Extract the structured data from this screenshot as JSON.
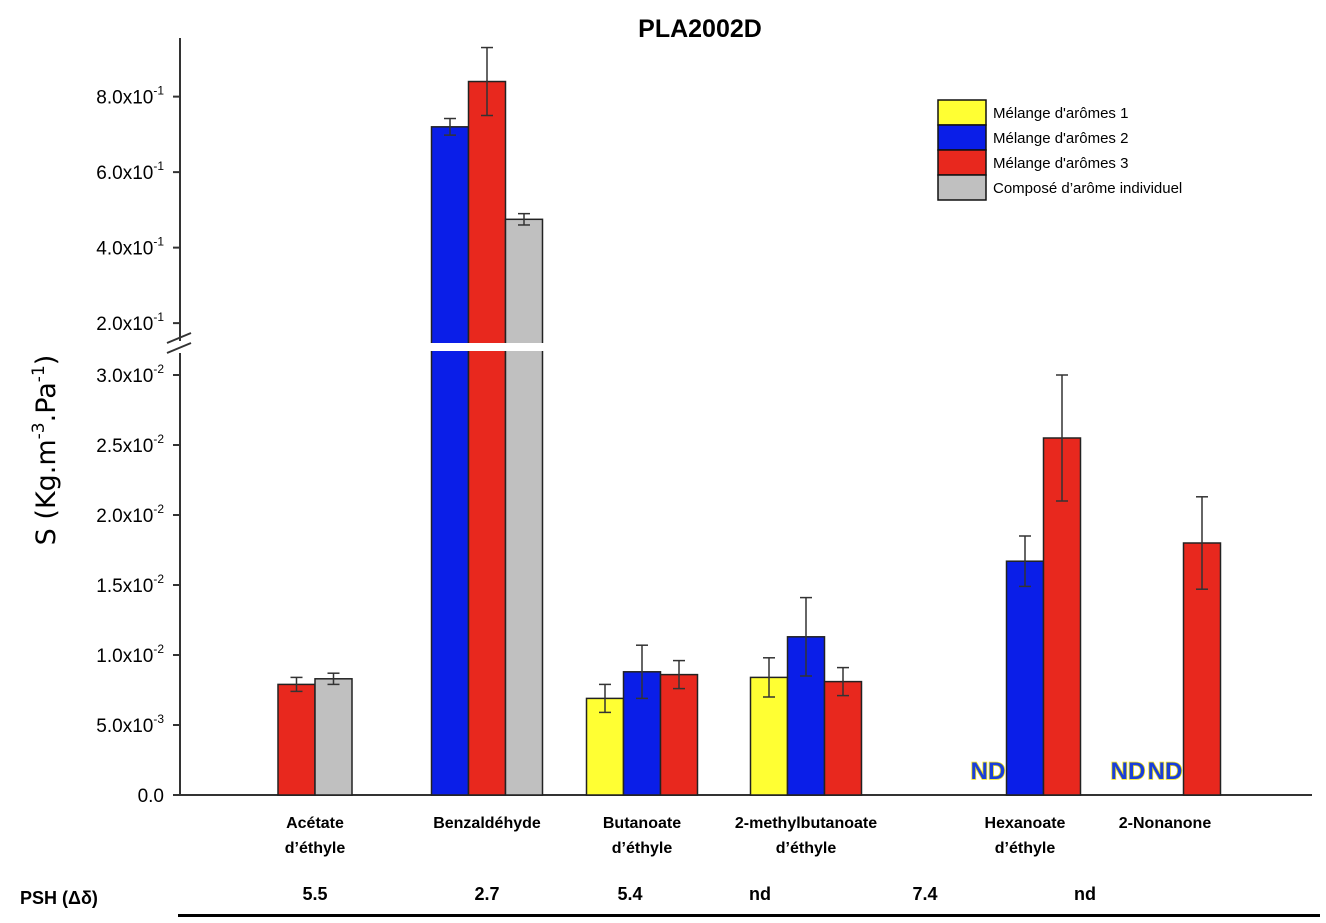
{
  "chart_data": {
    "type": "bar",
    "title": "PLA2002D",
    "ylabel_main": "S (Kg.m",
    "ylabel_sup1": "-3",
    "ylabel_mid": ".Pa",
    "ylabel_sup2": "-1",
    "ylabel_end": ")",
    "categories": [
      {
        "line1": "Acétate",
        "line2": "d’éthyle"
      },
      {
        "line1": "Benzaldéhyde",
        "line2": ""
      },
      {
        "line1": "Butanoate",
        "line2": "d’éthyle"
      },
      {
        "line1": "2-methylbutanoate",
        "line2": "d’éthyle"
      },
      {
        "line1": "Hexanoate",
        "line2": "d’éthyle"
      },
      {
        "line1": "2-Nonanone",
        "line2": ""
      }
    ],
    "series": [
      {
        "name": "Mélange d'arômes 1",
        "color": "#ffff33",
        "values": [
          null,
          null,
          0.0069,
          0.0084,
          null,
          null
        ],
        "errors": [
          null,
          null,
          0.001,
          0.0014,
          null,
          null
        ]
      },
      {
        "name": "Mélange d'arômes 2",
        "color": "#0a1ee8",
        "values": [
          null,
          0.72,
          0.0088,
          0.0113,
          0.0167,
          null
        ],
        "errors": [
          null,
          0.022,
          0.0019,
          0.0028,
          0.0018,
          null
        ]
      },
      {
        "name": "Mélange d'arômes 3",
        "color": "#e8281e",
        "values": [
          0.0079,
          0.84,
          0.0086,
          0.0081,
          0.0255,
          0.018
        ],
        "errors": [
          0.0005,
          0.09,
          0.001,
          0.001,
          0.0045,
          0.0033
        ]
      },
      {
        "name": "Composé d’arôme individuel",
        "color": "#c0c0c0",
        "values": [
          0.0083,
          0.475,
          null,
          null,
          null,
          null
        ],
        "errors": [
          0.0004,
          0.015,
          null,
          null,
          null,
          null
        ]
      }
    ],
    "nd_marks": [
      {
        "category": 4,
        "series": 0,
        "text": "ND"
      },
      {
        "category": 5,
        "series": 0,
        "text": "ND"
      },
      {
        "category": 5,
        "series": 1,
        "text": "ND"
      }
    ],
    "axis_lower": {
      "ylim": [
        0,
        0.03
      ],
      "ticks": [
        {
          "value": 0.0,
          "mant": "0.0",
          "exp": ""
        },
        {
          "value": 0.005,
          "mant": "5.0x10",
          "exp": "-3"
        },
        {
          "value": 0.01,
          "mant": "1.0x10",
          "exp": "-2"
        },
        {
          "value": 0.015,
          "mant": "1.5x10",
          "exp": "-2"
        },
        {
          "value": 0.02,
          "mant": "2.0x10",
          "exp": "-2"
        },
        {
          "value": 0.025,
          "mant": "2.5x10",
          "exp": "-2"
        },
        {
          "value": 0.03,
          "mant": "3.0x10",
          "exp": "-2"
        }
      ]
    },
    "axis_upper": {
      "ylim": [
        0.15,
        0.95
      ],
      "ticks": [
        {
          "value": 0.2,
          "mant": "2.0x10",
          "exp": "-1"
        },
        {
          "value": 0.4,
          "mant": "4.0x10",
          "exp": "-1"
        },
        {
          "value": 0.6,
          "mant": "6.0x10",
          "exp": "-1"
        },
        {
          "value": 0.8,
          "mant": "8.0x10",
          "exp": "-1"
        }
      ]
    },
    "legend_position": "top-right",
    "grid": false
  },
  "psh": {
    "label": "PSH (Δδ)",
    "values": [
      "5.5",
      "2.7",
      "5.4",
      "nd",
      "7.4",
      "nd"
    ]
  }
}
